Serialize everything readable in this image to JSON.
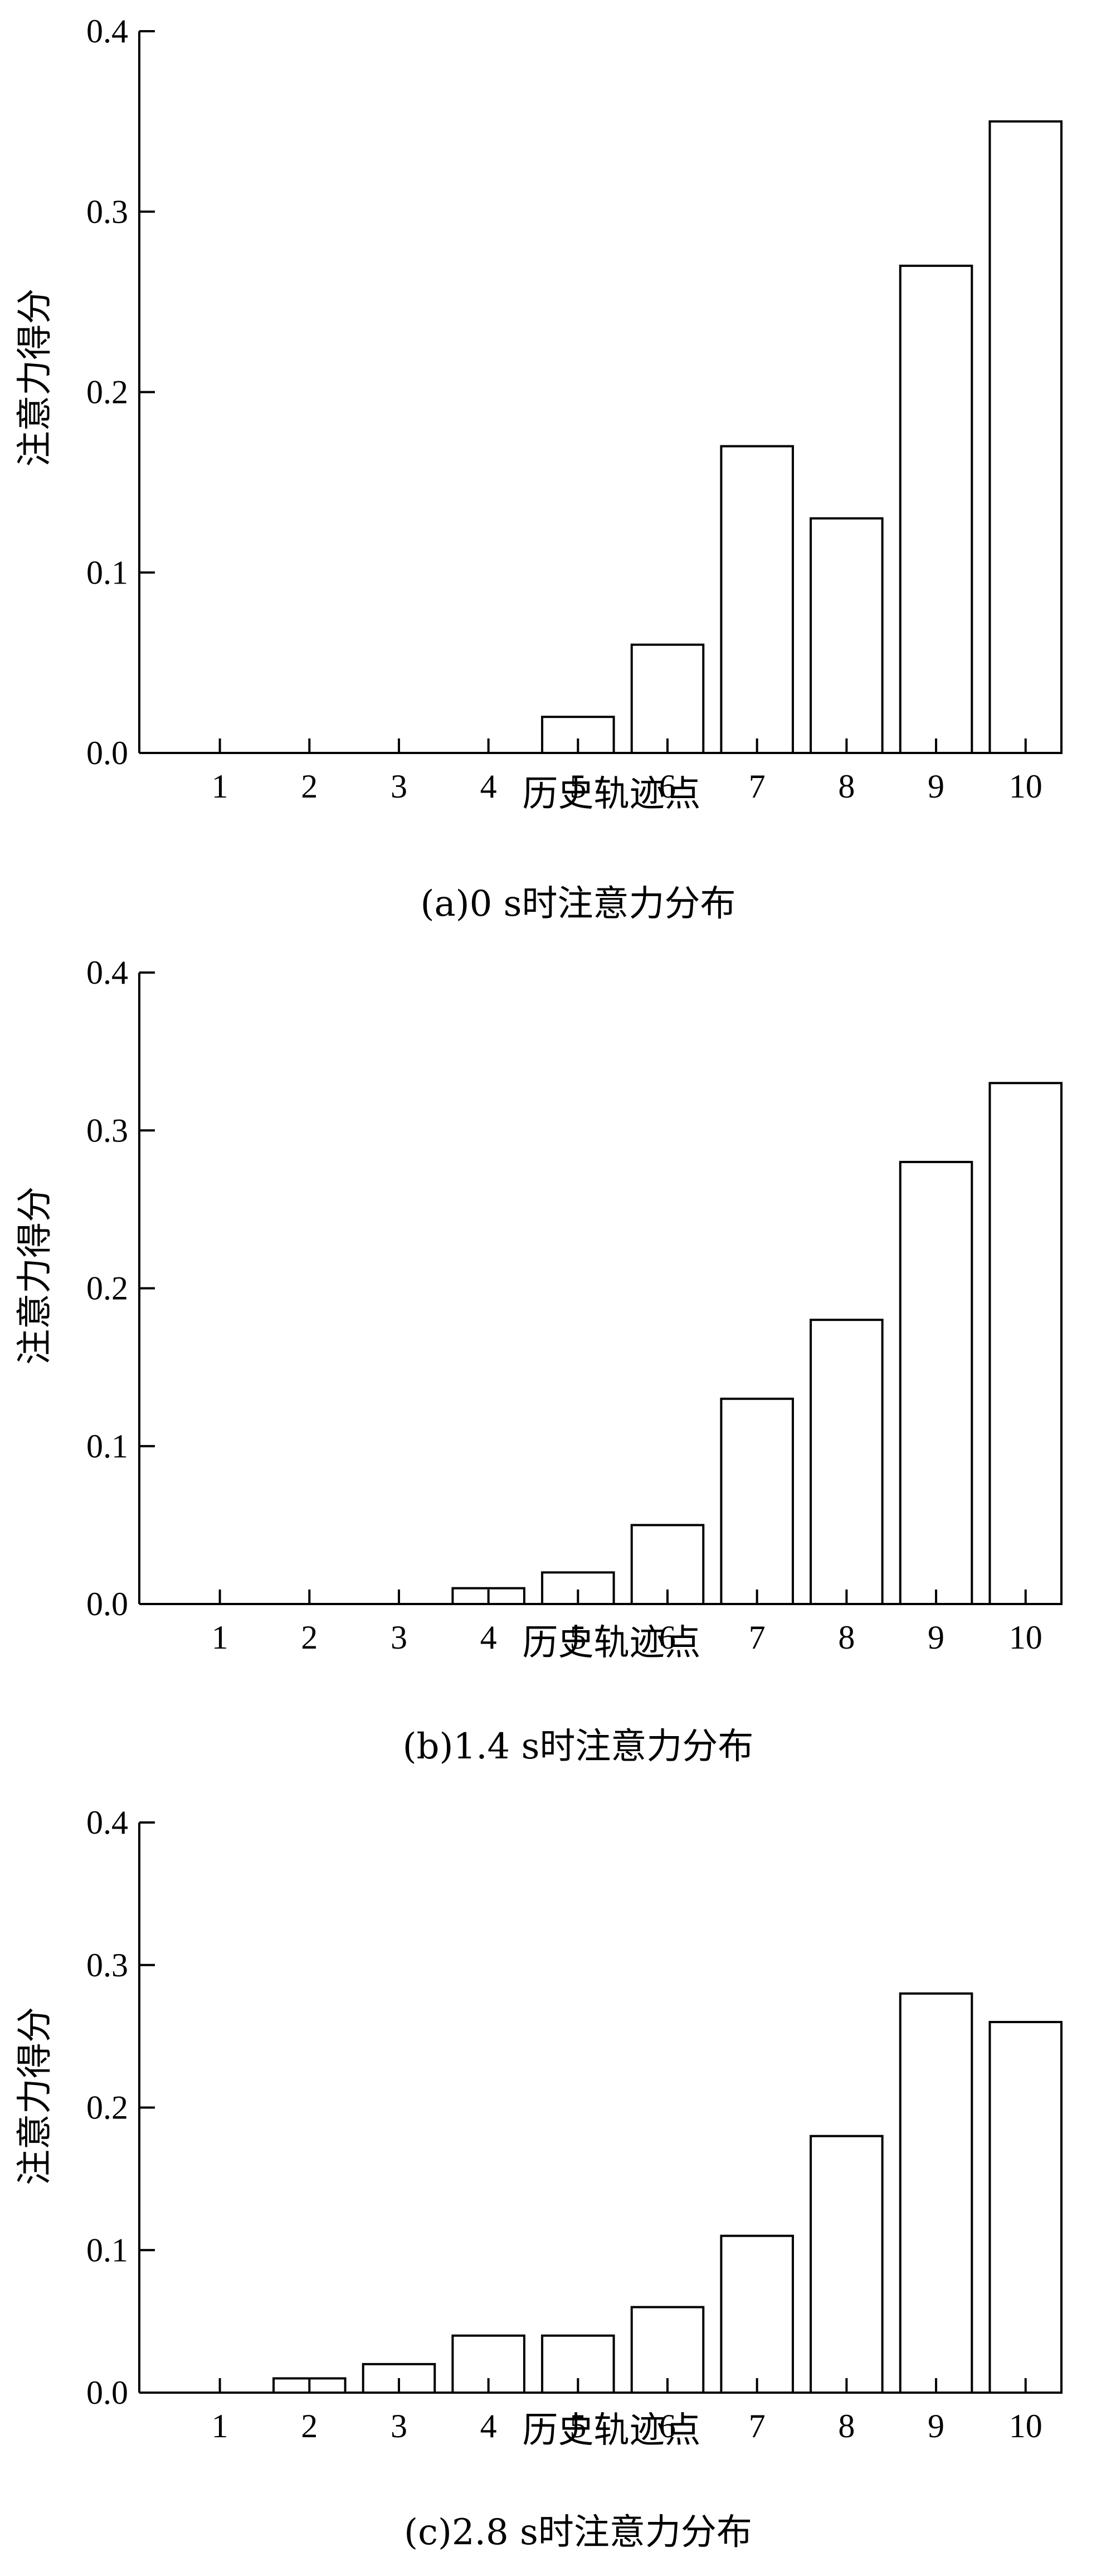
{
  "chart_data": [
    {
      "type": "bar",
      "caption": "(a)0 s时注意力分布",
      "xlabel": "历史轨迹点",
      "ylabel": "注意力得分",
      "categories": [
        "1",
        "2",
        "3",
        "4",
        "5",
        "6",
        "7",
        "8",
        "9",
        "10"
      ],
      "values": [
        0,
        0,
        0,
        0,
        0.02,
        0.06,
        0.17,
        0.13,
        0.27,
        0.35
      ],
      "ylim": [
        0,
        0.4
      ],
      "yticks": [
        "0.0",
        "0.1",
        "0.2",
        "0.3",
        "0.4"
      ],
      "grid": false
    },
    {
      "type": "bar",
      "caption": "(b)1.4 s时注意力分布",
      "xlabel": "历史轨迹点",
      "ylabel": "注意力得分",
      "categories": [
        "1",
        "2",
        "3",
        "4",
        "5",
        "6",
        "7",
        "8",
        "9",
        "10"
      ],
      "values": [
        0,
        0,
        0,
        0.01,
        0.02,
        0.05,
        0.13,
        0.18,
        0.28,
        0.33
      ],
      "ylim": [
        0,
        0.4
      ],
      "yticks": [
        "0.0",
        "0.1",
        "0.2",
        "0.3",
        "0.4"
      ],
      "grid": false
    },
    {
      "type": "bar",
      "caption": "(c)2.8 s时注意力分布",
      "xlabel": "历史轨迹点",
      "ylabel": "注意力得分",
      "categories": [
        "1",
        "2",
        "3",
        "4",
        "5",
        "6",
        "7",
        "8",
        "9",
        "10"
      ],
      "values": [
        0,
        0.01,
        0.02,
        0.04,
        0.04,
        0.06,
        0.11,
        0.18,
        0.28,
        0.26
      ],
      "ylim": [
        0,
        0.4
      ],
      "yticks": [
        "0.0",
        "0.1",
        "0.2",
        "0.3",
        "0.4"
      ],
      "grid": false
    }
  ]
}
